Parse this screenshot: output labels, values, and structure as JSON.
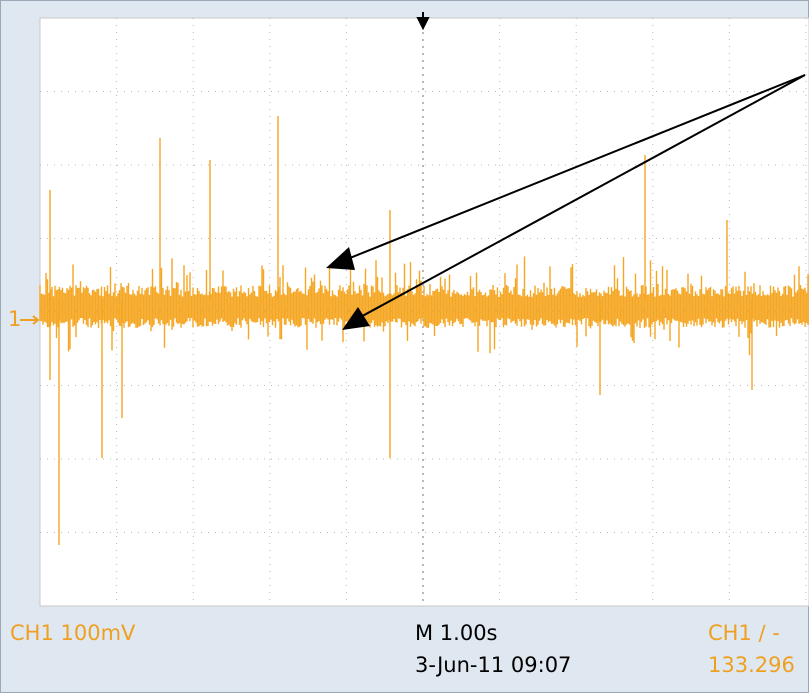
{
  "screen": {
    "channel_marker": "1",
    "readouts": {
      "channel_scale": "CH1  100mV",
      "timebase": "M 1.00s",
      "timestamp": "3-Jun-11 09:07",
      "trigger": "CH1 ∕ -",
      "frequency": "133.296"
    }
  }
}
